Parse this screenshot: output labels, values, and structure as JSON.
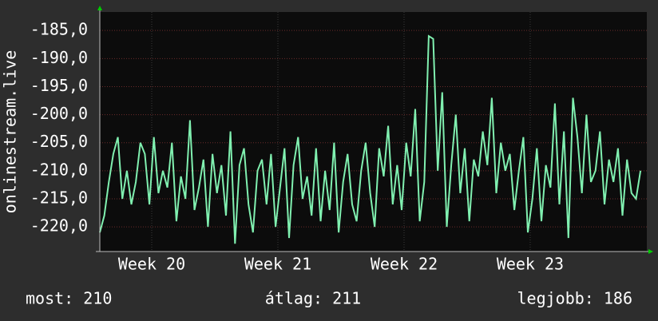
{
  "chart_data": {
    "type": "line",
    "y_label": "onlinestream.live",
    "stats": [
      "most: 210",
      "átlag: 211",
      "legjobb: 186"
    ],
    "x": [
      0,
      0.25,
      0.5,
      0.75,
      1,
      1.25,
      1.5,
      1.75,
      2,
      2.25,
      2.5,
      2.75,
      3,
      3.25,
      3.5,
      3.75,
      4,
      4.25,
      4.5,
      4.75,
      5,
      5.25,
      5.5,
      5.75,
      6,
      6.25,
      6.5,
      6.75,
      7,
      7.25,
      7.5,
      7.75,
      8,
      8.25,
      8.5,
      8.75,
      9,
      9.25,
      9.5,
      9.75,
      10,
      10.25,
      10.5,
      10.75,
      11,
      11.25,
      11.5,
      11.75,
      12,
      12.25,
      12.5,
      12.75,
      13,
      13.25,
      13.5,
      13.75,
      14,
      14.25,
      14.5,
      14.75,
      15,
      15.25,
      15.5,
      15.75,
      16,
      16.25,
      16.5,
      16.75,
      17,
      17.25,
      17.5,
      17.75,
      18,
      18.25,
      18.5,
      18.75,
      19,
      19.25,
      19.5,
      19.75,
      20,
      20.25,
      20.5,
      20.75,
      21,
      21.25,
      21.5,
      21.75,
      22,
      22.25,
      22.5,
      22.75,
      23,
      23.25,
      23.5,
      23.75,
      24,
      24.25,
      24.5,
      24.75,
      25,
      25.25,
      25.5,
      25.75,
      26,
      26.25,
      26.5,
      26.75,
      27,
      27.25,
      27.5,
      27.75,
      28,
      28.25,
      28.5,
      28.75,
      29,
      29.25,
      29.5,
      29.75,
      30
    ],
    "series": [
      {
        "color": "#80f0b0",
        "values": [
          -221,
          -218,
          -212,
          -207,
          -204,
          -215,
          -210,
          -216,
          -212,
          -205,
          -207,
          -216,
          -204,
          -214,
          -210,
          -213,
          -205,
          -219,
          -211,
          -215,
          -201,
          -217,
          -213,
          -208,
          -220,
          -207,
          -214,
          -209,
          -218,
          -203,
          -223,
          -209,
          -206,
          -216,
          -221,
          -210,
          -208,
          -216,
          -207,
          -220,
          -213,
          -206,
          -222,
          -209,
          -204,
          -215,
          -211,
          -218,
          -206,
          -219,
          -210,
          -217,
          -205,
          -221,
          -212,
          -207,
          -216,
          -219,
          -210,
          -205,
          -214,
          -220,
          -206,
          -211,
          -202,
          -216,
          -209,
          -217,
          -205,
          -211,
          -199,
          -219,
          -212,
          -186,
          -186.5,
          -210,
          -196,
          -220,
          -209,
          -200,
          -214,
          -206,
          -219,
          -208,
          -211,
          -203,
          -209,
          -197,
          -214,
          -205,
          -210,
          -207,
          -217,
          -210,
          -204,
          -221,
          -215,
          -206,
          -219,
          -209,
          -213,
          -198,
          -216,
          -203,
          -222,
          -197,
          -204,
          -214,
          -200,
          -212,
          -210,
          -203,
          -216,
          -208,
          -212,
          -206,
          -218,
          -208,
          -214,
          -215,
          -210
        ]
      }
    ],
    "xlim": [
      0,
      30.35
    ],
    "xticks": [
      {
        "value": 2.88,
        "label": "Week 20"
      },
      {
        "value": 9.88,
        "label": "Week 21"
      },
      {
        "value": 16.88,
        "label": "Week 22"
      },
      {
        "value": 23.88,
        "label": "Week 23"
      }
    ],
    "ylim": [
      -224.4,
      -181.7
    ],
    "yticks": [
      {
        "value": -185,
        "label": "-185,0"
      },
      {
        "value": -190,
        "label": "-190,0"
      },
      {
        "value": -195,
        "label": "-195,0"
      },
      {
        "value": -200,
        "label": "-200,0"
      },
      {
        "value": -205,
        "label": "-205,0"
      },
      {
        "value": -210,
        "label": "-210,0"
      },
      {
        "value": -215,
        "label": "-215,0"
      },
      {
        "value": -220,
        "label": "-220,0"
      }
    ],
    "grid": true
  }
}
